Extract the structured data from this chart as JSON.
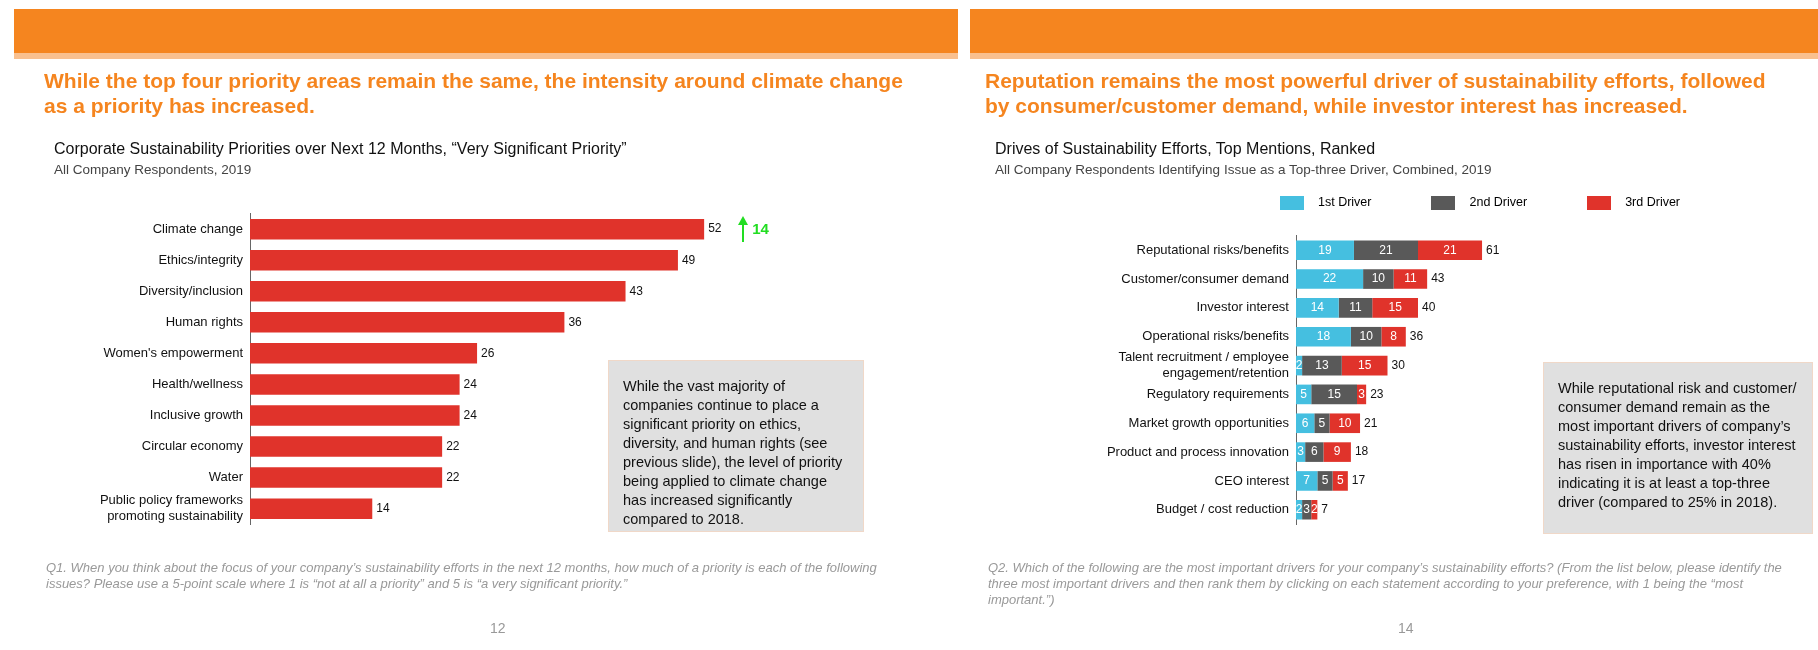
{
  "chart_data": [
    {
      "type": "bar",
      "orientation": "horizontal",
      "title": "Corporate Sustainability Priorities over Next 12 Months, “Very Significant Priority”",
      "subtitle": "All Company Respondents, 2019",
      "categories": [
        "Climate change",
        "Ethics/integrity",
        "Diversity/inclusion",
        "Human rights",
        "Women's empowerment",
        "Health/wellness",
        "Inclusive growth",
        "Circular economy",
        "Water",
        "Public policy frameworks promoting sustainability"
      ],
      "values": [
        52,
        49,
        43,
        36,
        26,
        24,
        24,
        22,
        22,
        14
      ],
      "color": "#e0332b",
      "data_labels": true,
      "grid": false,
      "legend": false,
      "annotations": [
        "While the top four priority areas remain the same, the intensity around climate change as a priority has increased.",
        "While the vast majority of companies continue to place a significant priority on ethics, diversity, and human rights (see previous slide), the level of priority being applied to climate change has increased significantly compared to 2018.",
        "Q1. When you think about the focus of your company’s sustainability efforts in the next 12 months, how much of a priority is each of the following issues? Please use a 5-point scale where 1 is “not at all a priority” and 5 is “a very significant priority.”",
        "12",
        "14"
      ]
    },
    {
      "type": "bar",
      "orientation": "horizontal",
      "stacked": true,
      "title": "Drives of Sustainability Efforts, Top Mentions, Ranked",
      "subtitle": "All Company Respondents Identifying Issue as a Top-three Driver, Combined, 2019",
      "categories": [
        "Reputational risks/benefits",
        "Customer/consumer demand",
        "Investor interest",
        "Operational risks/benefits",
        "Talent recruitment / employee engagement/retention",
        "Regulatory requirements",
        "Market growth opportunities",
        "Product and process innovation",
        "CEO interest",
        "Budget / cost reduction"
      ],
      "series": [
        {
          "name": "1st Driver",
          "color": "#45bfe0",
          "values": [
            19,
            22,
            14,
            18,
            2,
            5,
            6,
            3,
            7,
            2
          ]
        },
        {
          "name": "2nd Driver",
          "color": "#595959",
          "values": [
            21,
            10,
            11,
            10,
            13,
            15,
            5,
            6,
            5,
            3
          ]
        },
        {
          "name": "3rd Driver",
          "color": "#e0332b",
          "values": [
            21,
            11,
            15,
            8,
            15,
            3,
            10,
            9,
            5,
            2
          ]
        }
      ],
      "totals": [
        "61",
        "43",
        "40",
        "36",
        "30",
        "23",
        "21",
        "18",
        "17",
        "7"
      ],
      "data_labels": true,
      "grid": false,
      "legend": "top",
      "annotations": [
        "Reputation remains the most powerful driver of sustainability efforts, followed by consumer/customer demand, while investor interest has increased.",
        "While reputational risk and customer/ consumer demand remain as the most important drivers of company’s sustainability efforts, investor interest has risen in importance with 40% indicating it is at least a top-three driver (compared to 25% in 2018).",
        "Q2. Which of the following are the most important drivers for your company’s sustainability efforts? (From the list below, please identify the three most important drivers and then rank them by clicking on each statement according to your preference, with 1 being the “most important.”)",
        "14"
      ]
    }
  ]
}
